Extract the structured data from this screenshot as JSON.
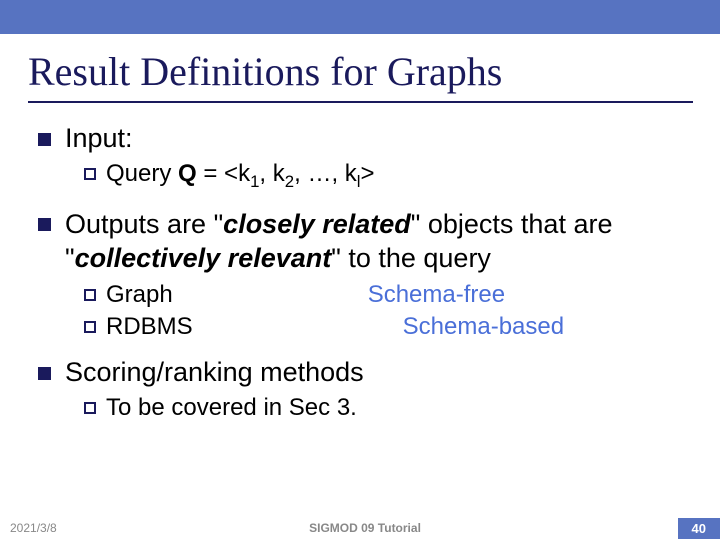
{
  "colors": {
    "top_bar": "#5773c1",
    "title": "#1a1a5c",
    "divider": "#1a1a5c",
    "bullet": "#1a1a5c",
    "text": "#000000",
    "accent": "#4a6fd8",
    "footer_grey": "#888888",
    "badge_bg": "#5773c1",
    "badge_text": "#ffffff"
  },
  "title": "Result Definitions for Graphs",
  "bullets": {
    "input": {
      "label": "Input:",
      "sub": {
        "query_prefix": "Query ",
        "q": "Q",
        "eq": " = <k",
        "s1": "1",
        "c1": ", k",
        "s2": "2",
        "c2": ", …, k",
        "sl": "l",
        "end": ">"
      }
    },
    "outputs": {
      "prefix": "Outputs are \"",
      "closely": "closely related",
      "mid": "\" objects that are \"",
      "collectively": "collectively relevant",
      "suffix": "\" to the query",
      "graph": "Graph",
      "schema_free": "Schema-free",
      "rdbms": "RDBMS",
      "schema_based": "Schema-based"
    },
    "scoring": {
      "label": "Scoring/ranking methods",
      "sub_prefix": "To",
      "sub_rest": " be covered in Sec 3."
    }
  },
  "footer": {
    "date": "2021/3/8",
    "center": "SIGMOD 09 Tutorial",
    "page": "40"
  }
}
